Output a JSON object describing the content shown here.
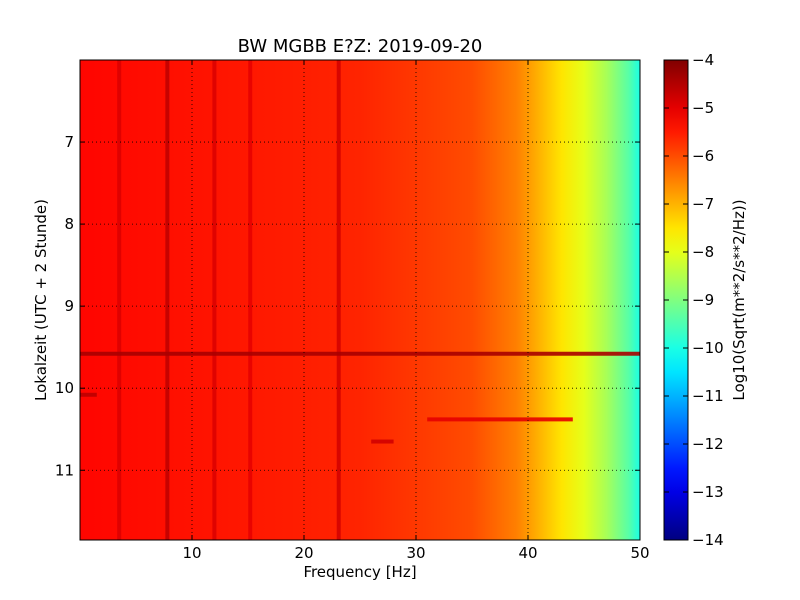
{
  "chart_data": {
    "type": "heatmap",
    "title": "BW MGBB E?Z: 2019-09-20",
    "xlabel": "Frequency [Hz]",
    "ylabel": "Lokalzeit (UTC + 2 Stunde)",
    "xlim": [
      0,
      50
    ],
    "ylim": [
      11.85,
      6.0
    ],
    "y_inverted": true,
    "x_ticks": [
      10,
      20,
      30,
      40,
      50
    ],
    "y_ticks": [
      7,
      8,
      9,
      10,
      11
    ],
    "grid": true,
    "colorbar": {
      "label": "Log10(Sqrt(m**2/s**2/Hz))",
      "range": [
        -14,
        -4
      ],
      "ticks": [
        -4,
        -5,
        -6,
        -7,
        -8,
        -9,
        -10,
        -11,
        -12,
        -13,
        -14
      ],
      "colormap": "jet"
    },
    "background_level": -5.3,
    "frequency_rolloff": [
      {
        "freq": 0,
        "level": -5.3
      },
      {
        "freq": 25,
        "level": -5.6
      },
      {
        "freq": 35,
        "level": -6.0
      },
      {
        "freq": 39,
        "level": -6.5
      },
      {
        "freq": 41,
        "level": -7.0
      },
      {
        "freq": 43,
        "level": -7.5
      },
      {
        "freq": 45,
        "level": -8.0
      },
      {
        "freq": 47,
        "level": -8.6
      },
      {
        "freq": 49,
        "level": -9.4
      },
      {
        "freq": 50,
        "level": -10.0
      }
    ],
    "vertical_lines_hz": [
      {
        "freq": 3.5,
        "level": -4.9
      },
      {
        "freq": 7.8,
        "level": -4.6
      },
      {
        "freq": 12.0,
        "level": -4.9
      },
      {
        "freq": 15.2,
        "level": -5.0
      },
      {
        "freq": 23.1,
        "level": -4.8
      }
    ],
    "horizontal_events": [
      {
        "time": 9.58,
        "freq_range": [
          0,
          50
        ],
        "level": -4.4
      },
      {
        "time": 10.08,
        "freq_range": [
          0,
          1.5
        ],
        "level": -4.6
      },
      {
        "time": 10.38,
        "freq_range": [
          31,
          44
        ],
        "level": -5.0
      },
      {
        "time": 10.65,
        "freq_range": [
          26,
          28
        ],
        "level": -4.8
      }
    ]
  }
}
